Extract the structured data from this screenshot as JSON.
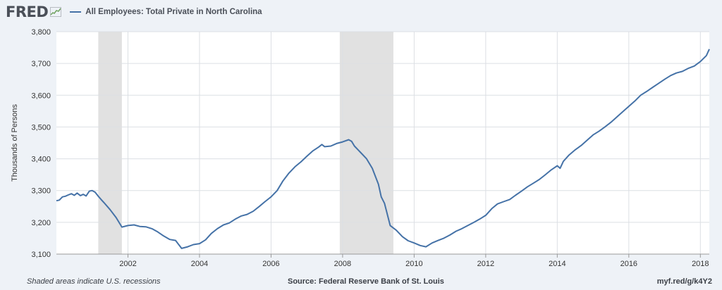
{
  "header": {
    "logo_text": "FRED",
    "logo_icon": "line-graph-icon",
    "series_title": "All Employees: Total Private in North Carolina"
  },
  "colors": {
    "line": "#4572a7",
    "recession_shade": "#e1e1e1",
    "plot_bg": "#ffffff",
    "page_bg": "#eef2f7",
    "grid": "#dcdfe4"
  },
  "footer": {
    "note": "Shaded areas indicate U.S. recessions",
    "source": "Source: Federal Reserve Bank of St. Louis",
    "link": "myf.red/g/k4Y2"
  },
  "chart_data": {
    "type": "line",
    "title": "All Employees: Total Private in North Carolina",
    "ylabel": "Thousands of Persons",
    "xlabel": "",
    "xlim": [
      2000.0,
      2018.25
    ],
    "ylim": [
      3100,
      3800
    ],
    "grid": true,
    "yticks": [
      3100,
      3200,
      3300,
      3400,
      3500,
      3600,
      3700,
      3800
    ],
    "ytick_labels": [
      "3,100",
      "3,200",
      "3,300",
      "3,400",
      "3,500",
      "3,600",
      "3,700",
      "3,800"
    ],
    "xticks": [
      2002,
      2004,
      2006,
      2008,
      2010,
      2012,
      2014,
      2016,
      2018
    ],
    "xtick_labels": [
      "2002",
      "2004",
      "2006",
      "2008",
      "2010",
      "2012",
      "2014",
      "2016",
      "2018"
    ],
    "recessions": [
      [
        2001.17,
        2001.83
      ],
      [
        2007.92,
        2009.42
      ]
    ],
    "series": [
      {
        "name": "All Employees: Total Private in North Carolina",
        "x": [
          2000.0,
          2000.08,
          2000.17,
          2000.25,
          2000.33,
          2000.42,
          2000.5,
          2000.58,
          2000.67,
          2000.75,
          2000.83,
          2000.92,
          2001.0,
          2001.08,
          2001.17,
          2001.25,
          2001.33,
          2001.5,
          2001.67,
          2001.83,
          2002.0,
          2002.17,
          2002.33,
          2002.5,
          2002.67,
          2002.83,
          2003.0,
          2003.17,
          2003.33,
          2003.5,
          2003.67,
          2003.83,
          2004.0,
          2004.17,
          2004.33,
          2004.5,
          2004.67,
          2004.83,
          2005.0,
          2005.17,
          2005.33,
          2005.5,
          2005.67,
          2005.83,
          2006.0,
          2006.17,
          2006.33,
          2006.5,
          2006.67,
          2006.83,
          2007.0,
          2007.17,
          2007.33,
          2007.42,
          2007.5,
          2007.67,
          2007.83,
          2008.0,
          2008.17,
          2008.25,
          2008.33,
          2008.5,
          2008.67,
          2008.83,
          2009.0,
          2009.08,
          2009.17,
          2009.33,
          2009.5,
          2009.67,
          2009.83,
          2010.0,
          2010.17,
          2010.33,
          2010.5,
          2010.67,
          2010.83,
          2011.0,
          2011.17,
          2011.33,
          2011.5,
          2011.67,
          2011.83,
          2012.0,
          2012.17,
          2012.33,
          2012.5,
          2012.67,
          2012.83,
          2013.0,
          2013.17,
          2013.33,
          2013.5,
          2013.67,
          2013.83,
          2014.0,
          2014.08,
          2014.17,
          2014.33,
          2014.5,
          2014.67,
          2014.83,
          2015.0,
          2015.17,
          2015.33,
          2015.5,
          2015.67,
          2015.83,
          2016.0,
          2016.17,
          2016.33,
          2016.5,
          2016.67,
          2016.83,
          2017.0,
          2017.17,
          2017.33,
          2017.5,
          2017.67,
          2017.83,
          2018.0,
          2018.17,
          2018.25
        ],
        "values": [
          3268,
          3270,
          3280,
          3282,
          3286,
          3290,
          3285,
          3292,
          3284,
          3288,
          3283,
          3298,
          3300,
          3295,
          3282,
          3272,
          3262,
          3240,
          3215,
          3185,
          3190,
          3192,
          3187,
          3186,
          3180,
          3170,
          3157,
          3146,
          3143,
          3118,
          3123,
          3130,
          3133,
          3145,
          3165,
          3180,
          3192,
          3198,
          3210,
          3220,
          3225,
          3235,
          3250,
          3265,
          3280,
          3300,
          3330,
          3355,
          3375,
          3390,
          3408,
          3425,
          3437,
          3445,
          3438,
          3440,
          3448,
          3453,
          3460,
          3455,
          3440,
          3420,
          3400,
          3370,
          3320,
          3280,
          3260,
          3190,
          3175,
          3155,
          3142,
          3135,
          3127,
          3123,
          3135,
          3143,
          3150,
          3160,
          3172,
          3180,
          3190,
          3200,
          3210,
          3222,
          3243,
          3258,
          3265,
          3272,
          3285,
          3298,
          3312,
          3323,
          3335,
          3350,
          3365,
          3378,
          3370,
          3392,
          3412,
          3428,
          3442,
          3458,
          3475,
          3487,
          3500,
          3515,
          3532,
          3548,
          3565,
          3582,
          3600,
          3612,
          3625,
          3637,
          3650,
          3662,
          3670,
          3675,
          3685,
          3692,
          3706,
          3725,
          3745
        ]
      }
    ]
  }
}
